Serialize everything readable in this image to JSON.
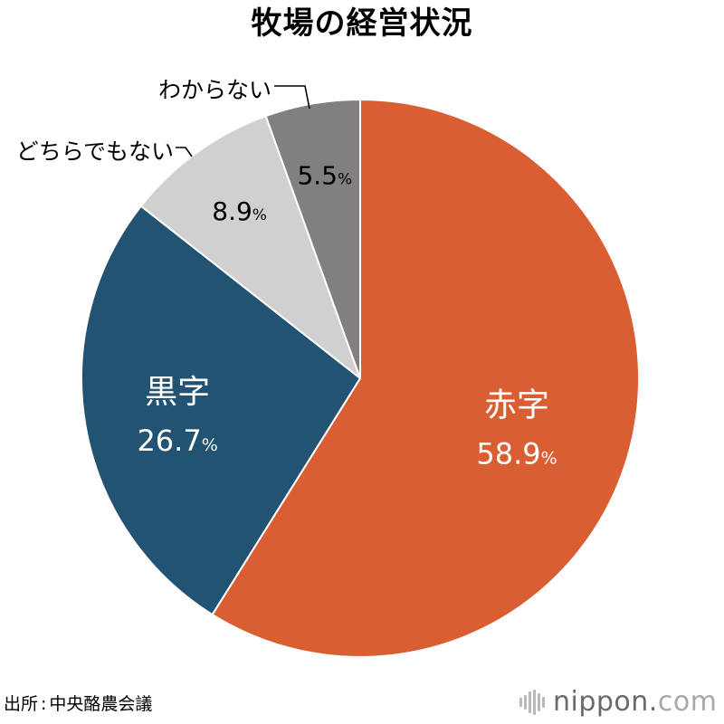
{
  "title": "牧場の経営状況",
  "source": {
    "label": "出所",
    "separator": ":",
    "name": "中央酪農会議"
  },
  "brand": {
    "main": "nippon.",
    "suffix": "com"
  },
  "chart_data": {
    "type": "pie",
    "title": "牧場の経営状況",
    "unit": "%",
    "slices": [
      {
        "label": "赤字",
        "value": 58.9,
        "color": "#d95f33",
        "label_inside": true
      },
      {
        "label": "黒字",
        "value": 26.7,
        "color": "#235372",
        "label_inside": true
      },
      {
        "label": "どちらでもない",
        "value": 8.9,
        "color": "#d0d0d0",
        "label_inside": false
      },
      {
        "label": "わからない",
        "value": 5.5,
        "color": "#808080",
        "label_inside": false
      }
    ],
    "start": "12 o'clock",
    "direction": "clockwise",
    "legend": "none"
  }
}
